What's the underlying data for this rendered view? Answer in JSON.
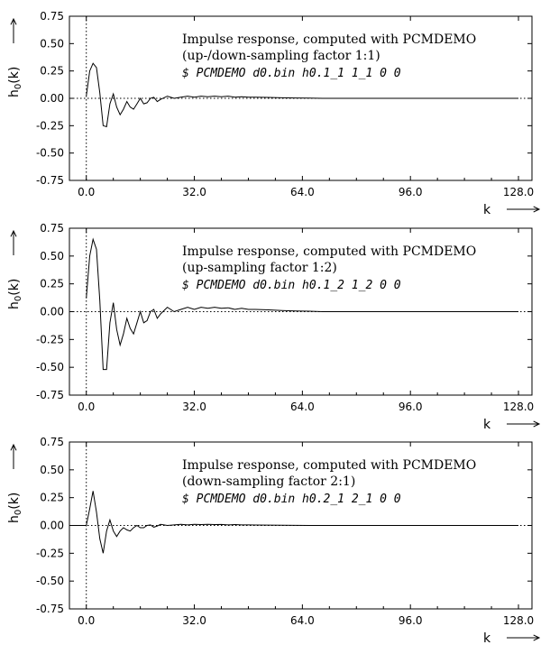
{
  "chart_data": [
    {
      "type": "line",
      "ylabel": "h0(k)",
      "xlabel": "k",
      "xlim": [
        -5,
        132
      ],
      "ylim": [
        -0.75,
        0.75
      ],
      "xticks": [
        "0.0",
        "32.0",
        "64.0",
        "96.0",
        "128.0"
      ],
      "yticks": [
        "0.75",
        "0.50",
        "0.25",
        "0.00",
        "-0.25",
        "-0.50",
        "-0.75"
      ],
      "annotation": [
        "Impulse response, computed with PCMDEMO",
        "(up-/down-sampling factor 1:1)",
        "$ PCMDEMO d0.bin h0.1_1 1_1 0 0"
      ],
      "series": [
        {
          "x": [
            0,
            1,
            2,
            3,
            4,
            5,
            6,
            7,
            8,
            9,
            10,
            11,
            12,
            13,
            14,
            15,
            16,
            17,
            18,
            19,
            20,
            21,
            22,
            24,
            26,
            28,
            30,
            32,
            34,
            36,
            38,
            40,
            42,
            44,
            46,
            48,
            50,
            54,
            58,
            62,
            66,
            70,
            80,
            90,
            100,
            110,
            120,
            128
          ],
          "y": [
            0.02,
            0.25,
            0.32,
            0.28,
            0.05,
            -0.25,
            -0.26,
            -0.05,
            0.04,
            -0.08,
            -0.15,
            -0.1,
            -0.03,
            -0.08,
            -0.1,
            -0.05,
            0.0,
            -0.05,
            -0.04,
            0.0,
            0.01,
            -0.03,
            -0.01,
            0.02,
            0.0,
            0.01,
            0.02,
            0.01,
            0.02,
            0.015,
            0.02,
            0.015,
            0.02,
            0.01,
            0.015,
            0.01,
            0.01,
            0.008,
            0.005,
            0.003,
            0.002,
            0.0,
            0.0,
            0.0,
            0.0,
            0.0,
            0.0,
            0.0
          ]
        }
      ]
    },
    {
      "type": "line",
      "ylabel": "h0(k)",
      "xlabel": "k",
      "xlim": [
        -5,
        132
      ],
      "ylim": [
        -0.75,
        0.75
      ],
      "xticks": [
        "0.0",
        "32.0",
        "64.0",
        "96.0",
        "128.0"
      ],
      "yticks": [
        "0.75",
        "0.50",
        "0.25",
        "0.00",
        "-0.25",
        "-0.50",
        "-0.75"
      ],
      "annotation": [
        "Impulse response, computed with PCMDEMO",
        "(up-sampling factor 1:2)",
        "$ PCMDEMO d0.bin h0.1_2 1_2 0 0"
      ],
      "series": [
        {
          "x": [
            0,
            1,
            2,
            3,
            4,
            5,
            6,
            7,
            8,
            9,
            10,
            11,
            12,
            13,
            14,
            15,
            16,
            17,
            18,
            19,
            20,
            21,
            22,
            24,
            26,
            28,
            30,
            32,
            34,
            36,
            38,
            40,
            42,
            44,
            46,
            48,
            50,
            54,
            58,
            62,
            66,
            70,
            80,
            90,
            100,
            110,
            120,
            128
          ],
          "y": [
            0.12,
            0.5,
            0.65,
            0.56,
            0.1,
            -0.52,
            -0.52,
            -0.1,
            0.08,
            -0.16,
            -0.3,
            -0.2,
            -0.06,
            -0.15,
            -0.2,
            -0.1,
            0.0,
            -0.1,
            -0.08,
            0.0,
            0.02,
            -0.06,
            -0.02,
            0.04,
            0.0,
            0.02,
            0.04,
            0.02,
            0.04,
            0.03,
            0.04,
            0.03,
            0.035,
            0.02,
            0.03,
            0.02,
            0.02,
            0.016,
            0.01,
            0.006,
            0.004,
            0.0,
            0.0,
            0.0,
            0.0,
            0.0,
            0.0,
            0.0
          ]
        }
      ]
    },
    {
      "type": "line",
      "ylabel": "h0(k)",
      "xlabel": "k",
      "xlim": [
        -5,
        132
      ],
      "ylim": [
        -0.75,
        0.75
      ],
      "xticks": [
        "0.0",
        "32.0",
        "64.0",
        "96.0",
        "128.0"
      ],
      "yticks": [
        "0.75",
        "0.50",
        "0.25",
        "0.00",
        "-0.25",
        "-0.50",
        "-0.75"
      ],
      "annotation": [
        "Impulse response, computed with PCMDEMO",
        "(down-sampling factor 2:1)",
        "$ PCMDEMO d0.bin h0.2_1 2_1 0 0"
      ],
      "series": [
        {
          "x": [
            -5,
            0,
            1,
            2,
            3,
            4,
            5,
            6,
            7,
            8,
            9,
            10,
            11,
            12,
            13,
            14,
            15,
            16,
            17,
            18,
            19,
            20,
            21,
            22,
            24,
            26,
            28,
            30,
            32,
            34,
            36,
            38,
            40,
            42,
            44,
            46,
            48,
            50,
            54,
            58,
            62,
            66,
            70,
            80,
            90,
            100,
            110,
            120,
            128
          ],
          "y": [
            0.0,
            0.0,
            0.15,
            0.31,
            0.12,
            -0.12,
            -0.25,
            -0.05,
            0.05,
            -0.05,
            -0.1,
            -0.05,
            -0.02,
            -0.04,
            -0.05,
            -0.02,
            0.0,
            -0.02,
            -0.02,
            0.0,
            0.005,
            -0.015,
            -0.005,
            0.01,
            0.0,
            0.005,
            0.01,
            0.005,
            0.01,
            0.008,
            0.01,
            0.008,
            0.009,
            0.005,
            0.008,
            0.005,
            0.005,
            0.004,
            0.003,
            0.002,
            0.001,
            0.0,
            0.0,
            0.0,
            0.0,
            0.0,
            0.0,
            0.0,
            0.0
          ]
        }
      ]
    }
  ]
}
